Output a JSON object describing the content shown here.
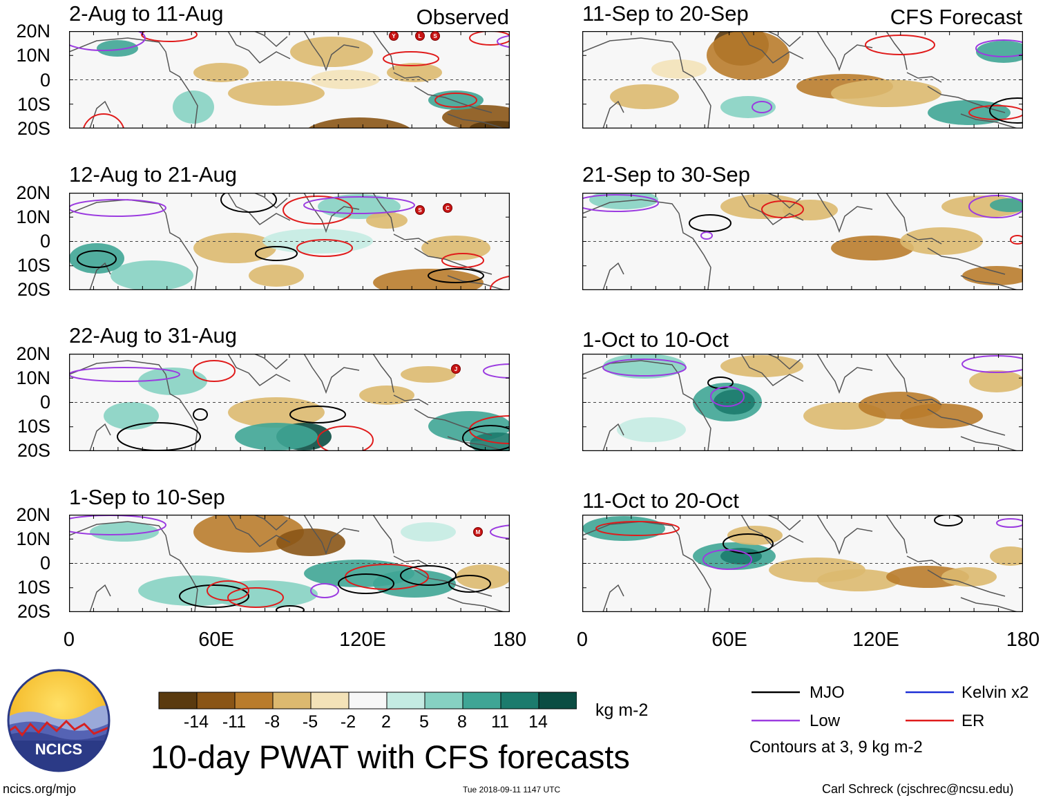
{
  "figure": {
    "title": "10-day PWAT with CFS forecasts",
    "units": "kg m-2",
    "contour_note": "Contours at 3, 9 kg m-2"
  },
  "columns": {
    "left_label": "Observed",
    "right_label": "CFS Forecast"
  },
  "panels_left": [
    {
      "period": "2-Aug to 11-Aug"
    },
    {
      "period": "12-Aug to 21-Aug"
    },
    {
      "period": "22-Aug to 31-Aug"
    },
    {
      "period": "1-Sep to 10-Sep"
    }
  ],
  "panels_right": [
    {
      "period": "11-Sep to 20-Sep"
    },
    {
      "period": "21-Sep to 30-Sep"
    },
    {
      "period": "1-Oct to 10-Oct"
    },
    {
      "period": "11-Oct to 20-Oct"
    }
  ],
  "axes": {
    "lat_ticks": [
      "20N",
      "10N",
      "0",
      "10S",
      "20S"
    ],
    "lon_ticks": [
      "0",
      "60E",
      "120E",
      "180"
    ]
  },
  "colorbar": {
    "colors": [
      "#5a3a0f",
      "#8a5516",
      "#b97c2c",
      "#dcb96f",
      "#f3e2b8",
      "#f7f7f7",
      "#c4ebe2",
      "#86d1c2",
      "#3fa595",
      "#1c7b6d",
      "#0b4d43"
    ],
    "tick_labels": [
      "-14",
      "-11",
      "-8",
      "-5",
      "-2",
      "2",
      "5",
      "8",
      "11",
      "14"
    ]
  },
  "legend": {
    "mjo": {
      "label": "MJO",
      "color": "#000000"
    },
    "low": {
      "label": "Low",
      "color": "#9b3be0"
    },
    "kelvin": {
      "label": "Kelvin x2",
      "color": "#1d2fd6"
    },
    "er": {
      "label": "ER",
      "color": "#e01b1b"
    }
  },
  "logo": {
    "text": "NCICS"
  },
  "footer": {
    "url": "ncics.org/mjo",
    "timestamp": "Tue 2018-09-11 1147 UTC",
    "credit": "Carl Schreck (cjschrec@ncsu.edu)"
  },
  "storm_markers": [
    {
      "panel": "L1",
      "letters": [
        "Y",
        "L",
        "S"
      ]
    },
    {
      "panel": "L2",
      "letters": [
        "S",
        "C"
      ]
    },
    {
      "panel": "L3",
      "letters": [
        "J"
      ]
    },
    {
      "panel": "L4",
      "letters": [
        "M"
      ]
    }
  ]
}
